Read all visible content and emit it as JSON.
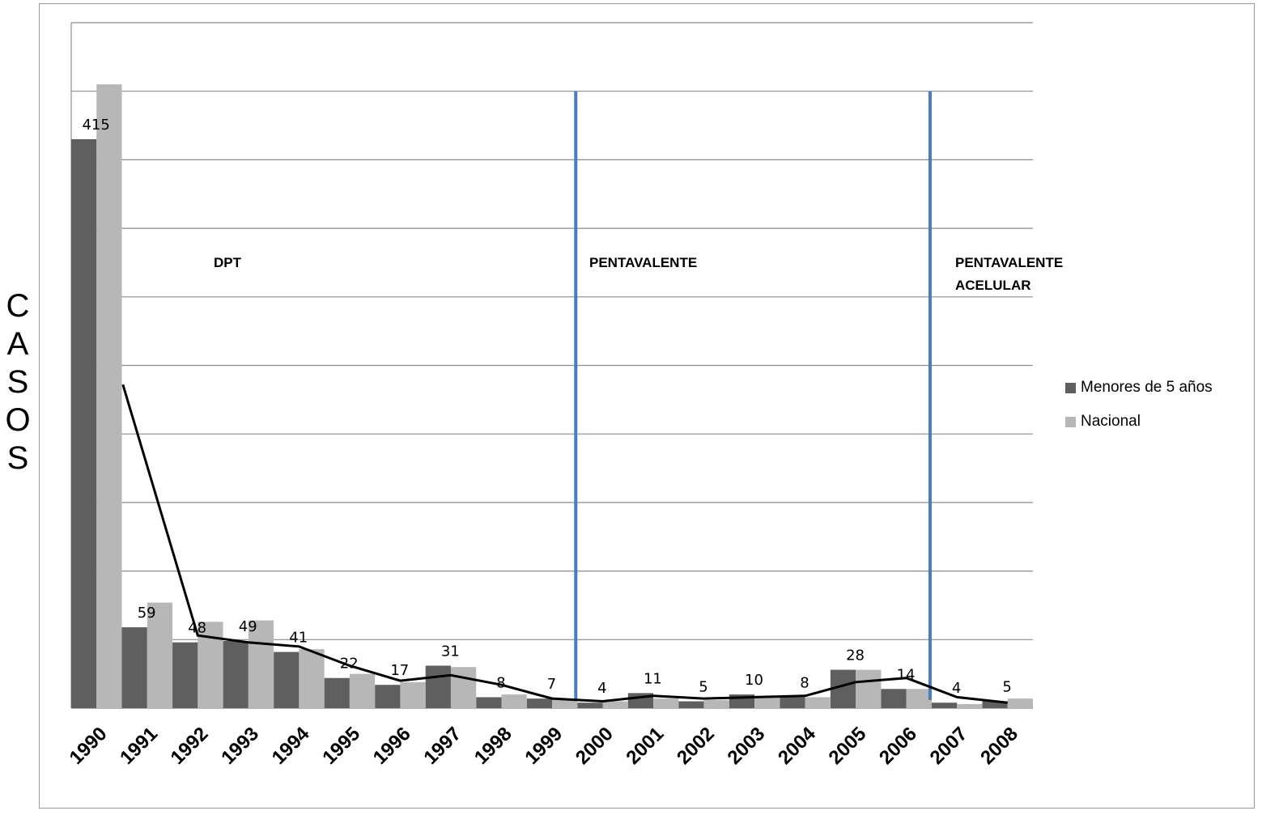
{
  "chart_data": {
    "type": "bar",
    "categories": [
      "1990",
      "1991",
      "1992",
      "1993",
      "1994",
      "1995",
      "1996",
      "1997",
      "1998",
      "1999",
      "2000",
      "2001",
      "2002",
      "2003",
      "2004",
      "2005",
      "2006",
      "2007",
      "2008"
    ],
    "series": [
      {
        "name": "Menores de 5 años",
        "color": "#5f5f5f",
        "values": [
          415,
          59,
          48,
          49,
          41,
          22,
          17,
          31,
          8,
          7,
          4,
          11,
          5,
          10,
          8,
          28,
          14,
          4,
          5
        ]
      },
      {
        "name": "Nacional",
        "color": "#b7b7b7",
        "values": [
          455,
          77,
          63,
          64,
          43,
          25,
          19,
          30,
          10,
          7,
          5,
          7,
          6,
          8,
          8,
          28,
          14,
          3,
          7
        ]
      }
    ],
    "trend_line": {
      "color": "#000000",
      "values": [
        null,
        236,
        53,
        48,
        45,
        31,
        20,
        24,
        17,
        7,
        5,
        9,
        7,
        8,
        9,
        19,
        22,
        8,
        4
      ]
    },
    "data_labels": [
      "415",
      "59",
      "48",
      "49",
      "41",
      "22",
      "17",
      "31",
      "8",
      "7",
      "4",
      "11",
      "5",
      "10",
      "8",
      "28",
      "14",
      "4",
      "5"
    ],
    "ylim": [
      0,
      500
    ],
    "grid": true,
    "ylabel": "CASOS",
    "legend_position": "right",
    "annotations": [
      "DPT",
      "PENTAVALENTE",
      "PENTAVALENTE ACELULAR"
    ],
    "vertical_markers": [
      {
        "x": "1999",
        "color": "#4a7ebb"
      },
      {
        "x": "2006",
        "color": "#4a7ebb"
      }
    ]
  },
  "legend": {
    "series1": "Menores de 5 años",
    "series2": "Nacional"
  }
}
